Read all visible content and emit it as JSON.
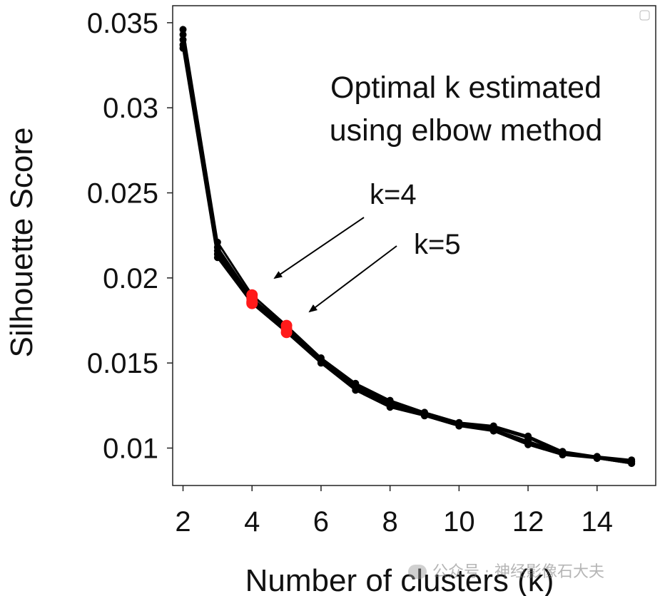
{
  "chart_data": {
    "type": "line",
    "xlabel": "Number of clusters (k)",
    "ylabel": "Silhouette Score",
    "xlim": [
      1.7,
      15.7
    ],
    "ylim": [
      0.0078,
      0.036
    ],
    "xticks": [
      2,
      4,
      6,
      8,
      10,
      12,
      14
    ],
    "yticks": [
      0.01,
      0.015,
      0.02,
      0.025,
      0.03,
      0.035
    ],
    "ytick_labels": [
      "0.01",
      "0.015",
      "0.02",
      "0.025",
      "0.03",
      "0.035"
    ],
    "grid": false,
    "x": [
      2,
      3,
      4,
      5,
      6,
      7,
      8,
      9,
      10,
      11,
      12,
      13,
      14,
      15
    ],
    "series": [
      {
        "values": [
          0.0346,
          0.0221,
          0.019,
          0.0172,
          0.0153,
          0.0138,
          0.0128,
          0.0121,
          0.0115,
          0.0113,
          0.0107,
          0.0098,
          0.0095,
          0.0093
        ]
      },
      {
        "values": [
          0.0343,
          0.0218,
          0.0188,
          0.0171,
          0.0152,
          0.0137,
          0.0127,
          0.012,
          0.0114,
          0.0112,
          0.0106,
          0.0097,
          0.0095,
          0.0092
        ]
      },
      {
        "values": [
          0.034,
          0.0216,
          0.0187,
          0.017,
          0.0151,
          0.0136,
          0.0126,
          0.012,
          0.0114,
          0.0111,
          0.0104,
          0.0097,
          0.0094,
          0.0092
        ]
      },
      {
        "values": [
          0.0337,
          0.0214,
          0.0186,
          0.0169,
          0.015,
          0.0135,
          0.0125,
          0.0119,
          0.0113,
          0.0111,
          0.0103,
          0.0097,
          0.0094,
          0.0091
        ]
      },
      {
        "values": [
          0.0335,
          0.0212,
          0.0185,
          0.0168,
          0.015,
          0.0134,
          0.0124,
          0.0119,
          0.0113,
          0.011,
          0.0102,
          0.0096,
          0.0094,
          0.0091
        ]
      }
    ],
    "highlighted_points": [
      {
        "x": 4,
        "values": [
          0.019,
          0.0188,
          0.0186,
          0.0185
        ],
        "color": "#ff1a1a"
      },
      {
        "x": 5,
        "values": [
          0.0172,
          0.017,
          0.0168
        ],
        "color": "#ff1a1a"
      }
    ],
    "line_color": "#000000",
    "annotations": [
      {
        "text": "Optimal k estimated",
        "line": 1
      },
      {
        "text": "using elbow method",
        "line": 2
      },
      {
        "text": "k=4",
        "target_x": 4,
        "target_y": 0.0188
      },
      {
        "text": "k=5",
        "target_x": 5,
        "target_y": 0.017
      }
    ],
    "legend": "top-right (empty)"
  },
  "watermark": {
    "text": "公众号 · 神经影像石大夫",
    "icon": "wechat-icon"
  }
}
